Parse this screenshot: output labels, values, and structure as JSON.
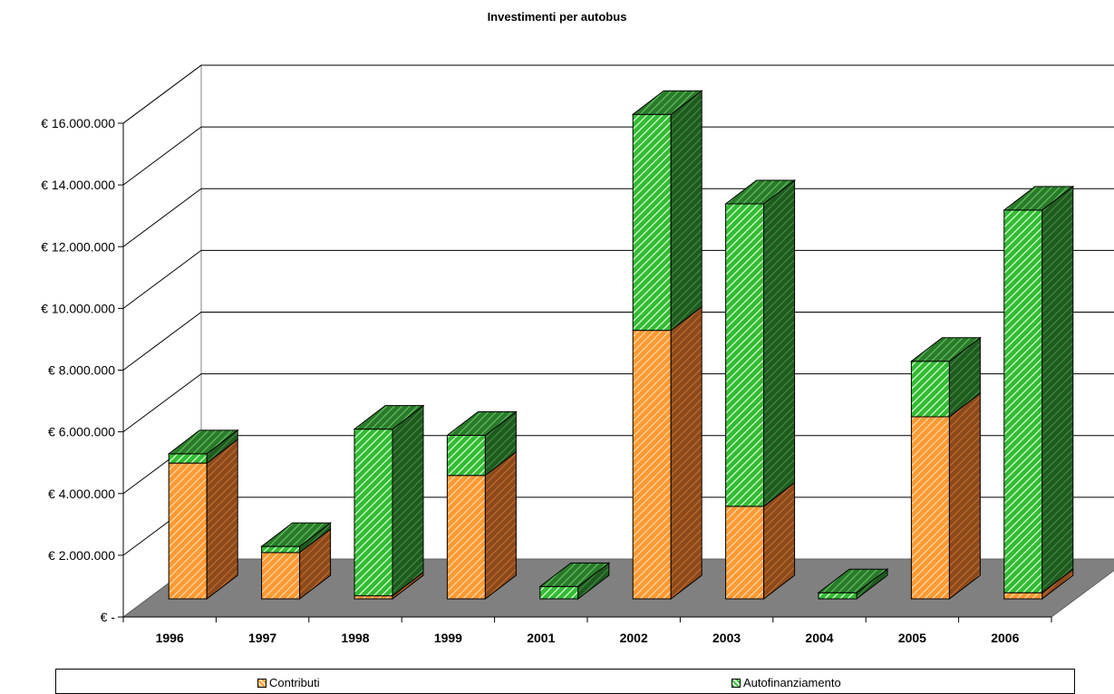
{
  "chart_data": {
    "type": "bar",
    "stacked": true,
    "three_d": true,
    "title": "Investimenti per autobus",
    "categories": [
      "1996",
      "1997",
      "1998",
      "1999",
      "2001",
      "2002",
      "2003",
      "2004",
      "2005",
      "2006"
    ],
    "series": [
      {
        "name": "Contributi",
        "color": "#ff9933",
        "values": [
          4400000,
          1500000,
          100000,
          4000000,
          0,
          8700000,
          3000000,
          0,
          5900000,
          200000
        ]
      },
      {
        "name": "Autofinanziamento",
        "color": "#33cc33",
        "values": [
          300000,
          200000,
          5400000,
          1300000,
          400000,
          7000000,
          9800000,
          200000,
          1800000,
          12400000
        ]
      }
    ],
    "y_tick_labels": [
      "€ -",
      "€ 2.000.000",
      "€ 4.000.000",
      "€ 6.000.000",
      "€ 8.000.000",
      "€ 10.000.000",
      "€ 12.000.000",
      "€ 14.000.000",
      "€ 16.000.000"
    ],
    "ylim": [
      0,
      16000000
    ],
    "grid": true,
    "legend_position": "bottom",
    "floor_color": "#808080"
  }
}
